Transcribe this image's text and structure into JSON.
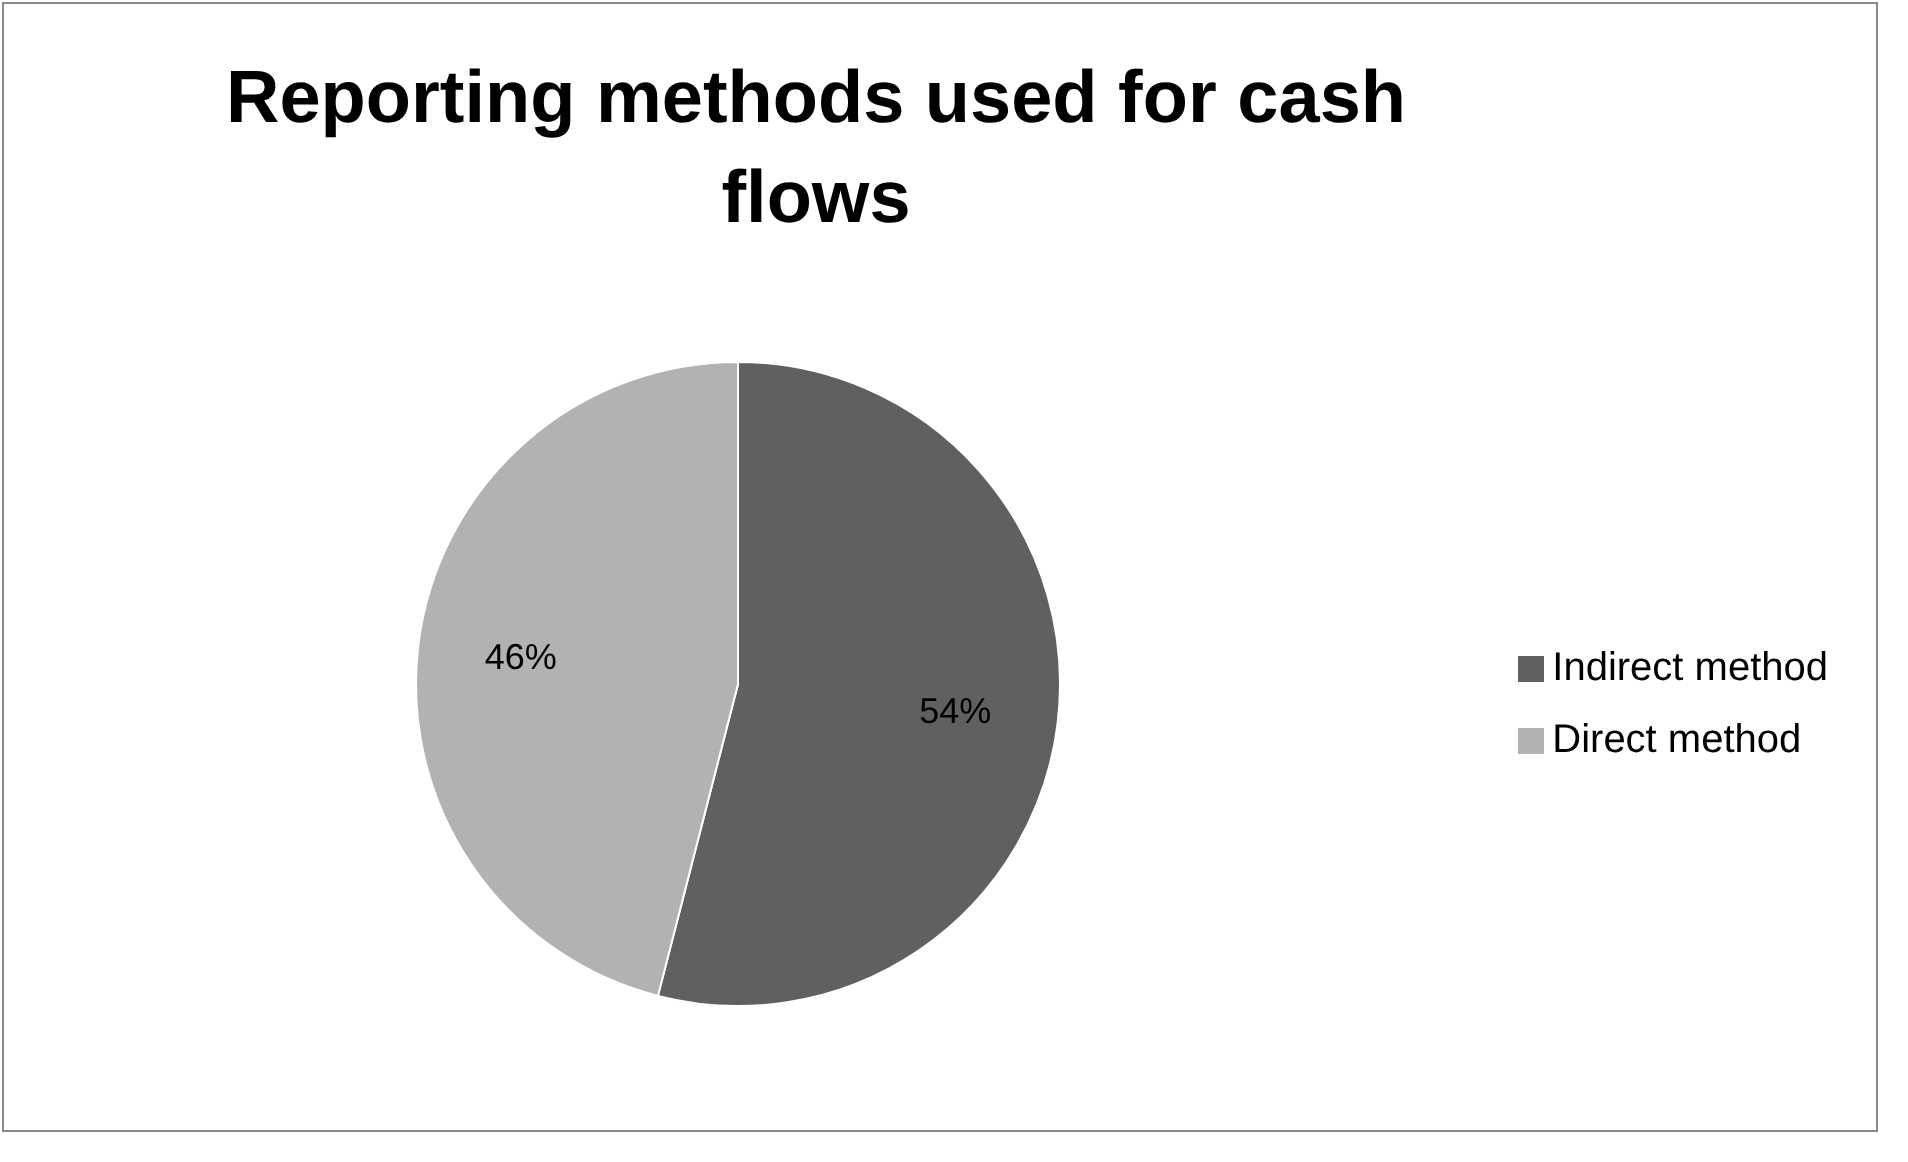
{
  "chart_data": {
    "type": "pie",
    "title": "Reporting methods used for cash flows",
    "categories": [
      "Indirect method",
      "Direct method"
    ],
    "values": [
      54,
      46
    ],
    "colors": [
      "#606060",
      "#b2b2b2"
    ],
    "value_labels": [
      "54%",
      "46%"
    ],
    "legend": "right"
  }
}
